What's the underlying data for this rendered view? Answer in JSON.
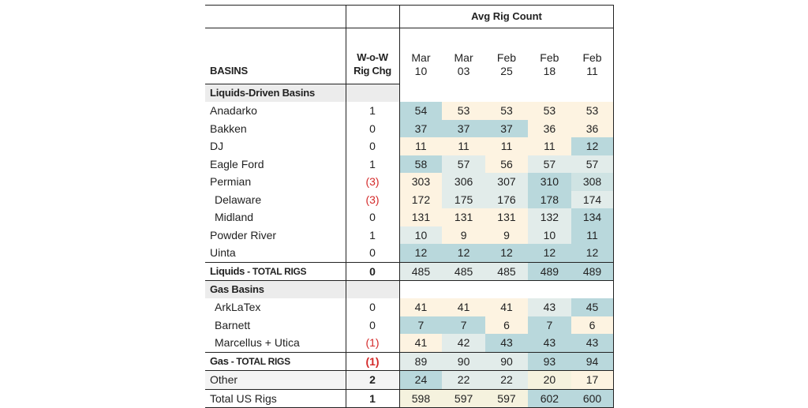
{
  "header": {
    "group_title": "Avg Rig Count",
    "basins_label": "BASINS",
    "wow_label_1": "W-o-W",
    "wow_label_2": "Rig Chg"
  },
  "dates": [
    {
      "month": "Mar",
      "day": "10"
    },
    {
      "month": "Mar",
      "day": "03"
    },
    {
      "month": "Feb",
      "day": "25"
    },
    {
      "month": "Feb",
      "day": "18"
    },
    {
      "month": "Feb",
      "day": "11"
    }
  ],
  "sections": {
    "liquids": "Liquids-Driven Basins",
    "gas": "Gas Basins"
  },
  "liquids_rows": [
    {
      "name": "Anadarko",
      "wow": "1",
      "values": [
        "54",
        "53",
        "53",
        "53",
        "53"
      ]
    },
    {
      "name": "Bakken",
      "wow": "0",
      "values": [
        "37",
        "37",
        "37",
        "36",
        "36"
      ]
    },
    {
      "name": "DJ",
      "wow": "0",
      "values": [
        "11",
        "11",
        "11",
        "11",
        "12"
      ]
    },
    {
      "name": "Eagle Ford",
      "wow": "1",
      "values": [
        "58",
        "57",
        "56",
        "57",
        "57"
      ]
    },
    {
      "name": "Permian",
      "wow": "(3)",
      "values": [
        "303",
        "306",
        "307",
        "310",
        "308"
      ]
    },
    {
      "name": "Delaware",
      "wow": "(3)",
      "values": [
        "172",
        "175",
        "176",
        "178",
        "174"
      ]
    },
    {
      "name": "Midland",
      "wow": "0",
      "values": [
        "131",
        "131",
        "131",
        "132",
        "134"
      ]
    },
    {
      "name": "Powder River",
      "wow": "1",
      "values": [
        "10",
        "9",
        "9",
        "10",
        "11"
      ]
    },
    {
      "name": "Uinta",
      "wow": "0",
      "values": [
        "12",
        "12",
        "12",
        "12",
        "12"
      ]
    }
  ],
  "liquids_total": {
    "label_1": "Liquids",
    "label_2": " - TOTAL RIGS",
    "wow": "0",
    "values": [
      "485",
      "485",
      "485",
      "489",
      "489"
    ]
  },
  "gas_rows": [
    {
      "name": "ArkLaTex",
      "wow": "0",
      "values": [
        "41",
        "41",
        "41",
        "43",
        "45"
      ]
    },
    {
      "name": "Barnett",
      "wow": "0",
      "values": [
        "7",
        "7",
        "6",
        "7",
        "6"
      ]
    },
    {
      "name": "Marcellus + Utica",
      "wow": "(1)",
      "values": [
        "41",
        "42",
        "43",
        "43",
        "43"
      ]
    }
  ],
  "gas_total": {
    "label_1": "Gas",
    "label_2": " - TOTAL RIGS",
    "wow": "(1)",
    "values": [
      "89",
      "90",
      "90",
      "93",
      "94"
    ]
  },
  "other_row": {
    "name": "Other",
    "wow": "2",
    "values": [
      "24",
      "22",
      "22",
      "20",
      "17"
    ]
  },
  "us_total": {
    "name": "Total US Rigs",
    "wow": "1",
    "values": [
      "598",
      "597",
      "597",
      "602",
      "600"
    ]
  },
  "colors": {
    "negative": "#d42a2a",
    "teal": "#b9d8dc",
    "tan": "#fdf3e1"
  }
}
